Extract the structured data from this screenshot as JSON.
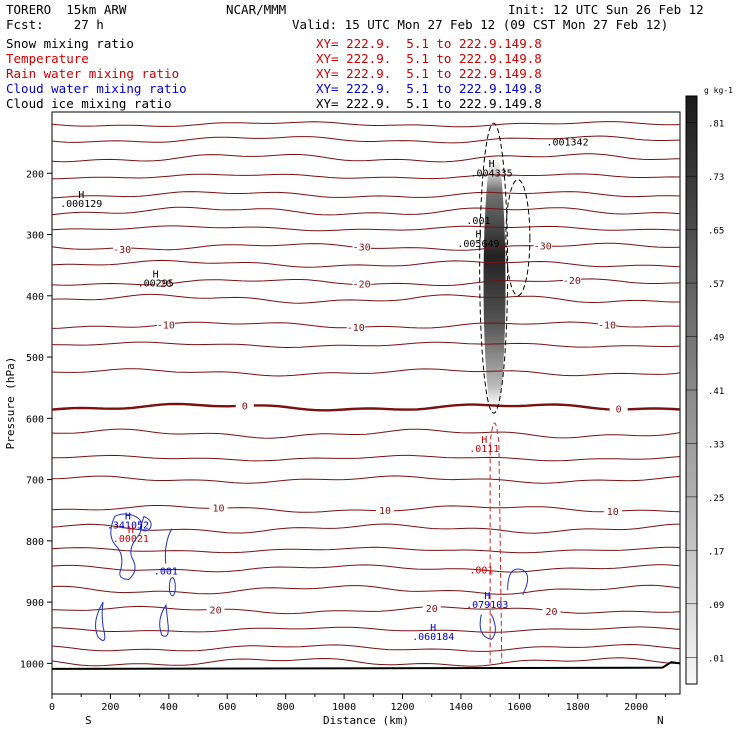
{
  "header": {
    "model": "TORERO  15km ARW",
    "center": "NCAR/MMM",
    "init": "Init: 12 UTC Sun 26 Feb 12",
    "fcst": "Fcst:    27 h",
    "valid": "Valid: 15 UTC Mon 27 Feb 12 (09 CST Mon 27 Feb 12)"
  },
  "fields": [
    {
      "name": "Snow mixing ratio",
      "xy": "XY= 222.9.  5.1 to 222.9.149.8",
      "color": "#000000"
    },
    {
      "name": "Temperature",
      "xy": "XY= 222.9.  5.1 to 222.9.149.8",
      "color": "#cc0000"
    },
    {
      "name": "Rain water mixing ratio",
      "xy": "XY= 222.9.  5.1 to 222.9.149.8",
      "color": "#cc0000"
    },
    {
      "name": "Cloud water mixing ratio",
      "xy": "XY= 222.9.  5.1 to 222.9.149.8",
      "color": "#0000cc"
    },
    {
      "name": "Cloud ice mixing ratio",
      "xy": "XY= 222.9.  5.1 to 222.9.149.8",
      "color": "#000000"
    }
  ],
  "chart_data": {
    "type": "contour cross-section",
    "xlabel": "Distance (km)",
    "ylabel": "Pressure (hPa)",
    "xlim": [
      0,
      2150
    ],
    "ylim": [
      1050,
      100
    ],
    "y_log_scale": false,
    "x_ticks": [
      0,
      200,
      400,
      600,
      800,
      1000,
      1200,
      1400,
      1600,
      1800,
      2000
    ],
    "y_ticks": [
      200,
      300,
      400,
      500,
      600,
      700,
      800,
      900,
      1000
    ],
    "x_end_labels": {
      "left": "S",
      "right": "N"
    },
    "colorbar": {
      "unit": "g kg-1",
      "labels": [
        ".01",
        ".09",
        ".17",
        ".25",
        ".33",
        ".41",
        ".49",
        ".57",
        ".65",
        ".73",
        ".81"
      ]
    },
    "temperature_contours": [
      {
        "value": "-30",
        "pressure": 320
      },
      {
        "value": "-20",
        "pressure": 378
      },
      {
        "value": "-10",
        "pressure": 448
      },
      {
        "value": "0",
        "pressure": 582
      },
      {
        "value": "10",
        "pressure": 748
      },
      {
        "value": "20",
        "pressure": 913
      }
    ],
    "annotations": [
      {
        "text": "H",
        "x": 100,
        "p": 240,
        "color": "#000000"
      },
      {
        "text": ".000129",
        "x": 100,
        "p": 255,
        "color": "#000000"
      },
      {
        "text": "H",
        "x": 355,
        "p": 370,
        "color": "#000000"
      },
      {
        "text": ".00295",
        "x": 355,
        "p": 385,
        "color": "#000000"
      },
      {
        "text": "H",
        "x": 1505,
        "p": 190,
        "color": "#000000"
      },
      {
        "text": ".004335",
        "x": 1505,
        "p": 205,
        "color": "#000000"
      },
      {
        "text": ".001342",
        "x": 1765,
        "p": 155,
        "color": "#000000"
      },
      {
        "text": ".001",
        "x": 1460,
        "p": 283,
        "color": "#000000"
      },
      {
        "text": "H",
        "x": 1460,
        "p": 305,
        "color": "#000000"
      },
      {
        "text": ".005649",
        "x": 1460,
        "p": 320,
        "color": "#000000"
      },
      {
        "text": "H",
        "x": 1480,
        "p": 640,
        "color": "#cc0000"
      },
      {
        "text": ".0111",
        "x": 1480,
        "p": 655,
        "color": "#cc0000"
      },
      {
        "text": ".001",
        "x": 1470,
        "p": 853,
        "color": "#cc0000"
      },
      {
        "text": "H",
        "x": 260,
        "p": 765,
        "color": "#0000cc"
      },
      {
        "text": ".341052",
        "x": 260,
        "p": 780,
        "color": "#0000cc"
      },
      {
        "text": "H",
        "x": 270,
        "p": 787,
        "color": "#cc0000"
      },
      {
        "text": ".00021",
        "x": 270,
        "p": 802,
        "color": "#cc0000"
      },
      {
        "text": ".001",
        "x": 390,
        "p": 855,
        "color": "#0000cc"
      },
      {
        "text": "H",
        "x": 1490,
        "p": 895,
        "color": "#0000cc"
      },
      {
        "text": ".079103",
        "x": 1490,
        "p": 910,
        "color": "#0000cc"
      },
      {
        "text": "H",
        "x": 1305,
        "p": 947,
        "color": "#0000cc"
      },
      {
        "text": ".060184",
        "x": 1305,
        "p": 962,
        "color": "#0000cc"
      }
    ]
  }
}
